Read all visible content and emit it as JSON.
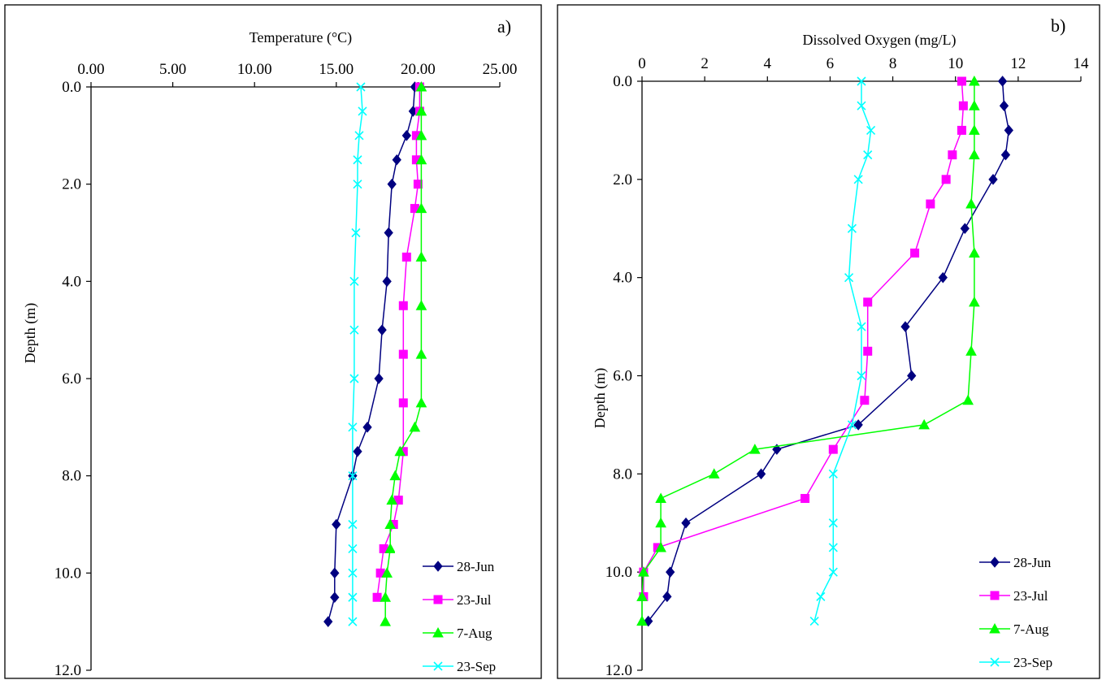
{
  "chart_data": [
    {
      "type": "line",
      "panel_label": "a)",
      "xlabel": "Temperature  (°C)",
      "ylabel": "Depth (m)",
      "xlim": [
        0,
        25
      ],
      "ylim": [
        0,
        12
      ],
      "x_ticks": [
        "0.00",
        "5.00",
        "10.00",
        "15.00",
        "20.00",
        "25.00"
      ],
      "y_ticks": [
        "0.0",
        "2.0",
        "4.0",
        "6.0",
        "8.0",
        "10.0",
        "12.0"
      ],
      "x_axis_position": "top",
      "y_inverted": true,
      "grid": false,
      "legend": "bottom-right",
      "series": [
        {
          "name": "28-Jun",
          "color": "#000080",
          "marker": "diamond",
          "x": [
            19.8,
            19.7,
            19.3,
            18.7,
            18.4,
            18.2,
            18.1,
            17.8,
            17.6,
            16.9,
            16.3,
            16.0,
            15.0,
            14.9,
            14.9,
            14.5
          ],
          "y": [
            0.0,
            0.5,
            1.0,
            1.5,
            2.0,
            3.0,
            4.0,
            5.0,
            6.0,
            7.0,
            7.5,
            8.0,
            9.0,
            10.0,
            10.5,
            11.0
          ]
        },
        {
          "name": "23-Jul",
          "color": "#ff00ff",
          "marker": "square",
          "x": [
            20.1,
            20.1,
            19.9,
            19.9,
            20.0,
            19.8,
            19.3,
            19.1,
            19.1,
            19.1,
            19.1,
            18.8,
            18.5,
            17.9,
            17.7,
            17.5
          ],
          "y": [
            0.0,
            0.5,
            1.0,
            1.5,
            2.0,
            2.5,
            3.5,
            4.5,
            5.5,
            6.5,
            7.5,
            8.5,
            9.0,
            9.5,
            10.0,
            10.5
          ]
        },
        {
          "name": "7-Aug",
          "color": "#00ff00",
          "marker": "triangle",
          "x": [
            20.2,
            20.2,
            20.2,
            20.2,
            20.2,
            20.2,
            20.2,
            20.2,
            20.2,
            19.8,
            18.9,
            18.6,
            18.4,
            18.3,
            18.3,
            18.1,
            18.0,
            18.0
          ],
          "y": [
            0.0,
            0.5,
            1.0,
            1.5,
            2.5,
            3.5,
            4.5,
            5.5,
            6.5,
            7.0,
            7.5,
            8.0,
            8.5,
            9.0,
            9.5,
            10.0,
            10.5,
            11.0
          ]
        },
        {
          "name": "23-Sep",
          "color": "#00ffff",
          "marker": "x",
          "x": [
            16.5,
            16.6,
            16.4,
            16.3,
            16.3,
            16.2,
            16.1,
            16.1,
            16.1,
            16.0,
            16.0,
            16.0,
            16.0,
            16.0,
            16.0,
            16.0
          ],
          "y": [
            0.0,
            0.5,
            1.0,
            1.5,
            2.0,
            3.0,
            4.0,
            5.0,
            6.0,
            7.0,
            8.0,
            9.0,
            9.5,
            10.0,
            10.5,
            11.0
          ]
        }
      ]
    },
    {
      "type": "line",
      "panel_label": "b)",
      "xlabel": "Dissolved  Oxygen  (mg/L)",
      "ylabel": "Depth (m)",
      "xlim": [
        0,
        14
      ],
      "ylim": [
        0,
        12
      ],
      "x_ticks": [
        "0",
        "2",
        "4",
        "6",
        "8",
        "10",
        "12",
        "14"
      ],
      "y_ticks": [
        "0.0",
        "2.0",
        "4.0",
        "6.0",
        "8.0",
        "10.0",
        "12.0"
      ],
      "x_axis_position": "top",
      "y_inverted": true,
      "grid": false,
      "legend": "bottom-right",
      "series": [
        {
          "name": "28-Jun",
          "color": "#000080",
          "marker": "diamond",
          "x": [
            11.5,
            11.55,
            11.7,
            11.6,
            11.2,
            10.3,
            9.6,
            8.4,
            8.6,
            6.9,
            4.3,
            3.8,
            1.4,
            0.9,
            0.8,
            0.2
          ],
          "y": [
            0.0,
            0.5,
            1.0,
            1.5,
            2.0,
            3.0,
            4.0,
            5.0,
            6.0,
            7.0,
            7.5,
            8.0,
            9.0,
            10.0,
            10.5,
            11.0
          ]
        },
        {
          "name": "23-Jul",
          "color": "#ff00ff",
          "marker": "square",
          "x": [
            10.2,
            10.25,
            10.2,
            9.9,
            9.7,
            9.2,
            8.7,
            7.2,
            7.2,
            7.1,
            6.1,
            5.2,
            0.5,
            0.05,
            0.05
          ],
          "y": [
            0.0,
            0.5,
            1.0,
            1.5,
            2.0,
            2.5,
            3.5,
            4.5,
            5.5,
            6.5,
            7.5,
            8.5,
            9.5,
            10.0,
            10.5
          ]
        },
        {
          "name": "7-Aug",
          "color": "#00ff00",
          "marker": "triangle",
          "x": [
            10.6,
            10.6,
            10.6,
            10.6,
            10.5,
            10.6,
            10.6,
            10.5,
            10.4,
            9.0,
            3.6,
            2.3,
            0.6,
            0.6,
            0.6,
            0.05,
            0.0,
            0.0
          ],
          "y": [
            0.0,
            0.5,
            1.0,
            1.5,
            2.5,
            3.5,
            4.5,
            5.5,
            6.5,
            7.0,
            7.5,
            8.0,
            8.5,
            9.0,
            9.5,
            10.0,
            10.5,
            11.0
          ]
        },
        {
          "name": "23-Sep",
          "color": "#00ffff",
          "marker": "x",
          "x": [
            7.0,
            7.0,
            7.3,
            7.2,
            6.9,
            6.7,
            6.6,
            7.0,
            7.0,
            6.7,
            6.1,
            6.1,
            6.1,
            6.1,
            5.7,
            5.5
          ],
          "y": [
            0.0,
            0.5,
            1.0,
            1.5,
            2.0,
            3.0,
            4.0,
            5.0,
            6.0,
            7.0,
            8.0,
            9.0,
            9.5,
            10.0,
            10.5,
            11.0
          ]
        }
      ]
    }
  ]
}
